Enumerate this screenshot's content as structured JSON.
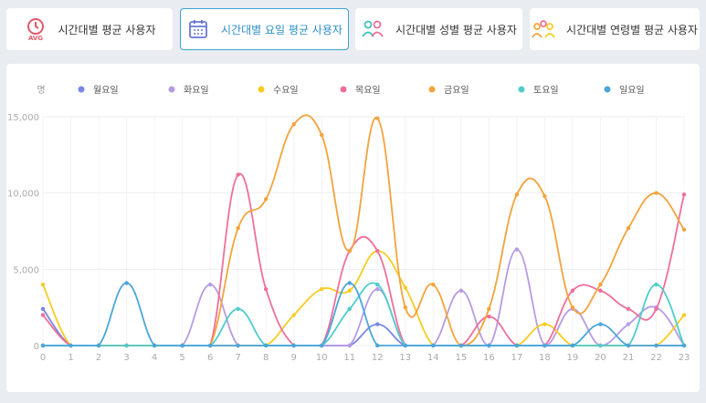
{
  "tabs": [
    {
      "label": "시간대별 평균 사용자",
      "icon": "avg-clock-icon",
      "active": false
    },
    {
      "label": "시간대별 요일 평균 사용자",
      "icon": "calendar-icon",
      "active": true
    },
    {
      "label": "시간대별 성별 평균 사용자",
      "icon": "gender-users-icon",
      "active": false
    },
    {
      "label": "시간대별 연령별 평균 사용자",
      "icon": "age-users-icon",
      "active": false
    }
  ],
  "chart_data": {
    "type": "line",
    "unit_label": "명",
    "x": [
      "0",
      "1",
      "2",
      "3",
      "4",
      "5",
      "6",
      "7",
      "8",
      "9",
      "10",
      "11",
      "12",
      "13",
      "14",
      "15",
      "16",
      "17",
      "18",
      "19",
      "20",
      "21",
      "22",
      "23"
    ],
    "y_ticks": [
      "0",
      "5,000",
      "10,000",
      "15,000"
    ],
    "ylim": [
      0,
      15000
    ],
    "grid": true,
    "legend_position": "top",
    "series": [
      {
        "name": "월요일",
        "color": "#7b86e6",
        "values": [
          2400,
          0,
          0,
          0,
          0,
          0,
          0,
          0,
          0,
          0,
          0,
          0,
          1400,
          0,
          0,
          0,
          0,
          0,
          0,
          0,
          0,
          0,
          0,
          0
        ]
      },
      {
        "name": "화요일",
        "color": "#b79be5",
        "values": [
          0,
          0,
          0,
          0,
          0,
          0,
          4000,
          0,
          0,
          0,
          0,
          0,
          3700,
          0,
          0,
          3600,
          0,
          6300,
          0,
          2400,
          0,
          1400,
          2500,
          0
        ]
      },
      {
        "name": "수요일",
        "color": "#f6cc22",
        "values": [
          4000,
          0,
          0,
          0,
          0,
          0,
          0,
          0,
          0,
          2000,
          3700,
          3600,
          6200,
          3800,
          0,
          0,
          0,
          0,
          1400,
          0,
          0,
          0,
          0,
          2000
        ]
      },
      {
        "name": "목요일",
        "color": "#ef6f9a",
        "values": [
          2000,
          0,
          0,
          0,
          0,
          0,
          0,
          11200,
          3700,
          0,
          0,
          6200,
          6200,
          0,
          0,
          0,
          1900,
          0,
          0,
          3600,
          3600,
          2400,
          2400,
          9900
        ]
      },
      {
        "name": "금요일",
        "color": "#f3a33c",
        "values": [
          0,
          0,
          0,
          0,
          0,
          0,
          0,
          7700,
          9600,
          14500,
          13800,
          6200,
          14900,
          2500,
          4000,
          0,
          2400,
          9900,
          9800,
          2500,
          4000,
          7700,
          10000,
          7600
        ]
      },
      {
        "name": "토요일",
        "color": "#4ecdcb",
        "values": [
          0,
          0,
          0,
          0,
          0,
          0,
          0,
          2400,
          0,
          0,
          0,
          2400,
          4000,
          0,
          0,
          0,
          0,
          0,
          0,
          0,
          0,
          0,
          4000,
          0
        ]
      },
      {
        "name": "일요일",
        "color": "#4aa6db",
        "values": [
          0,
          0,
          0,
          4100,
          0,
          0,
          0,
          0,
          0,
          0,
          0,
          4100,
          0,
          0,
          0,
          0,
          0,
          0,
          0,
          0,
          1400,
          0,
          0,
          0
        ]
      }
    ]
  }
}
